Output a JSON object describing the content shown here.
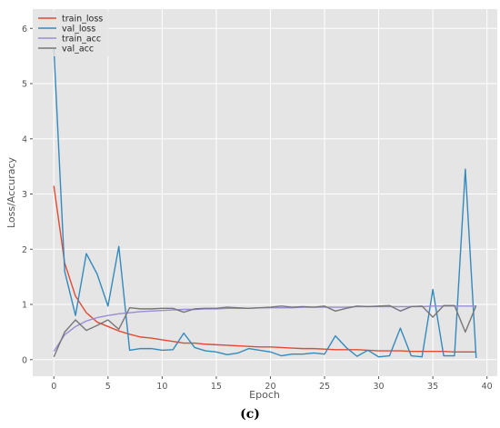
{
  "caption": "(c)",
  "chart_data": {
    "type": "line",
    "title": "",
    "xlabel": "Epoch",
    "ylabel": "Loss/Accuracy",
    "xlim": [
      -1.95,
      40.95
    ],
    "ylim": [
      -0.3,
      6.35
    ],
    "xticks": [
      0,
      5,
      10,
      15,
      20,
      25,
      30,
      35,
      40
    ],
    "yticks": [
      0,
      1,
      2,
      3,
      4,
      5,
      6
    ],
    "grid": true,
    "legend_position": "top-left",
    "style": {
      "background": "#E5E5E5",
      "grid_color": "#FFFFFF",
      "tick_color": "#555555"
    },
    "x": [
      0,
      1,
      2,
      3,
      4,
      5,
      6,
      7,
      8,
      9,
      10,
      11,
      12,
      13,
      14,
      15,
      16,
      17,
      18,
      19,
      20,
      21,
      22,
      23,
      24,
      25,
      26,
      27,
      28,
      29,
      30,
      31,
      32,
      33,
      34,
      35,
      36,
      37,
      38,
      39
    ],
    "series": [
      {
        "name": "train_loss",
        "color": "#E24A33",
        "values": [
          3.15,
          1.75,
          1.15,
          0.85,
          0.68,
          0.6,
          0.52,
          0.46,
          0.41,
          0.39,
          0.36,
          0.33,
          0.3,
          0.3,
          0.28,
          0.27,
          0.26,
          0.25,
          0.24,
          0.23,
          0.23,
          0.22,
          0.21,
          0.2,
          0.2,
          0.19,
          0.18,
          0.18,
          0.18,
          0.17,
          0.16,
          0.16,
          0.16,
          0.15,
          0.15,
          0.15,
          0.15,
          0.14,
          0.14,
          0.14
        ]
      },
      {
        "name": "val_loss",
        "color": "#348ABD",
        "values": [
          5.65,
          1.6,
          0.8,
          1.92,
          1.55,
          0.97,
          2.05,
          0.17,
          0.2,
          0.2,
          0.17,
          0.18,
          0.48,
          0.22,
          0.16,
          0.14,
          0.09,
          0.12,
          0.2,
          0.17,
          0.14,
          0.07,
          0.1,
          0.1,
          0.12,
          0.1,
          0.43,
          0.22,
          0.06,
          0.17,
          0.05,
          0.07,
          0.57,
          0.07,
          0.05,
          1.27,
          0.07,
          0.07,
          3.45,
          0.03
        ]
      },
      {
        "name": "train_acc",
        "color": "#988ED5",
        "values": [
          0.15,
          0.45,
          0.6,
          0.7,
          0.76,
          0.8,
          0.83,
          0.85,
          0.87,
          0.88,
          0.89,
          0.9,
          0.91,
          0.91,
          0.92,
          0.92,
          0.93,
          0.93,
          0.93,
          0.94,
          0.94,
          0.94,
          0.94,
          0.95,
          0.95,
          0.95,
          0.95,
          0.95,
          0.96,
          0.96,
          0.96,
          0.96,
          0.96,
          0.96,
          0.96,
          0.97,
          0.97,
          0.97,
          0.97,
          0.97
        ]
      },
      {
        "name": "val_acc",
        "color": "#777777",
        "values": [
          0.05,
          0.5,
          0.72,
          0.53,
          0.62,
          0.72,
          0.55,
          0.94,
          0.92,
          0.92,
          0.93,
          0.93,
          0.86,
          0.92,
          0.93,
          0.93,
          0.95,
          0.94,
          0.93,
          0.94,
          0.95,
          0.97,
          0.95,
          0.96,
          0.95,
          0.97,
          0.88,
          0.93,
          0.97,
          0.96,
          0.97,
          0.98,
          0.88,
          0.96,
          0.97,
          0.77,
          0.98,
          0.98,
          0.5,
          0.98
        ]
      }
    ]
  }
}
